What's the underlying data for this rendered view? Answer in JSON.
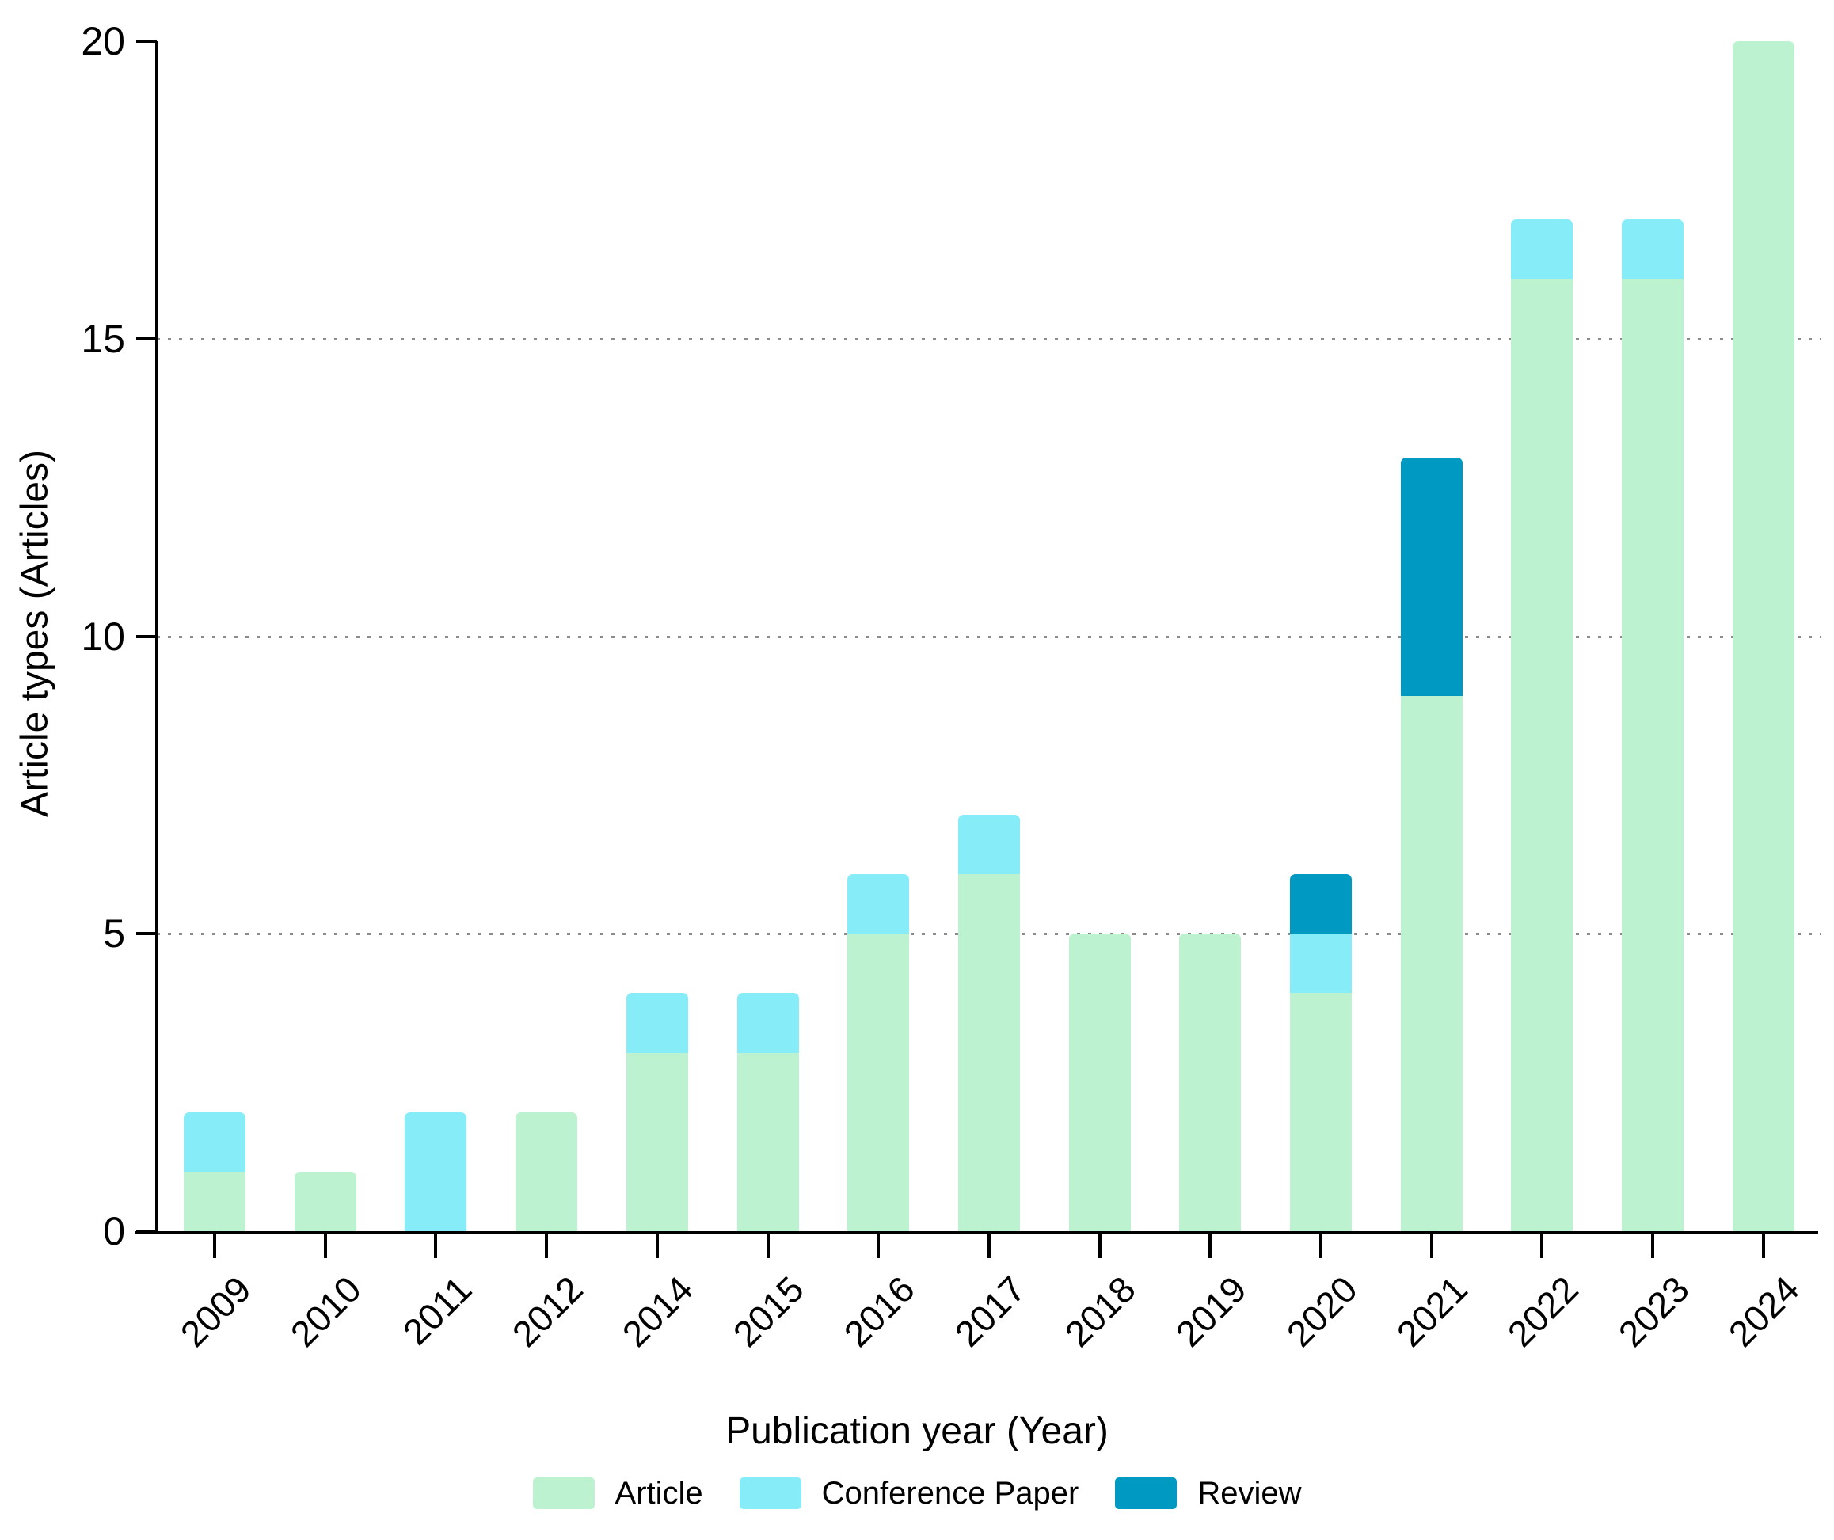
{
  "chart_data": {
    "type": "bar",
    "stacked": true,
    "title": "",
    "xlabel": "Publication year (Year)",
    "ylabel": "Article types (Articles)",
    "categories": [
      "2009",
      "2010",
      "2011",
      "2012",
      "2014",
      "2015",
      "2016",
      "2017",
      "2018",
      "2019",
      "2020",
      "2021",
      "2022",
      "2023",
      "2024"
    ],
    "series": [
      {
        "name": "Article",
        "color": "#bdf2d1",
        "values": [
          1,
          1,
          0,
          2,
          3,
          3,
          5,
          6,
          5,
          5,
          4,
          9,
          16,
          16,
          20
        ]
      },
      {
        "name": "Conference Paper",
        "color": "#86ecf8",
        "values": [
          1,
          0,
          2,
          0,
          1,
          1,
          1,
          1,
          0,
          0,
          1,
          0,
          1,
          1,
          0
        ]
      },
      {
        "name": "Review",
        "color": "#0099c2",
        "values": [
          0,
          0,
          0,
          0,
          0,
          0,
          0,
          0,
          0,
          0,
          1,
          4,
          0,
          0,
          0
        ]
      }
    ],
    "totals": [
      2,
      1,
      2,
      2,
      4,
      4,
      6,
      7,
      5,
      5,
      6,
      13,
      17,
      17,
      20
    ],
    "ylim": [
      0,
      20
    ],
    "yticks": [
      0,
      5,
      10,
      15,
      20
    ],
    "gridlines": [
      5,
      10,
      15
    ],
    "grid_style": "dotted",
    "legend_position": "bottom",
    "axis_color": "#000000",
    "grid_color": "#8c8c8c"
  }
}
